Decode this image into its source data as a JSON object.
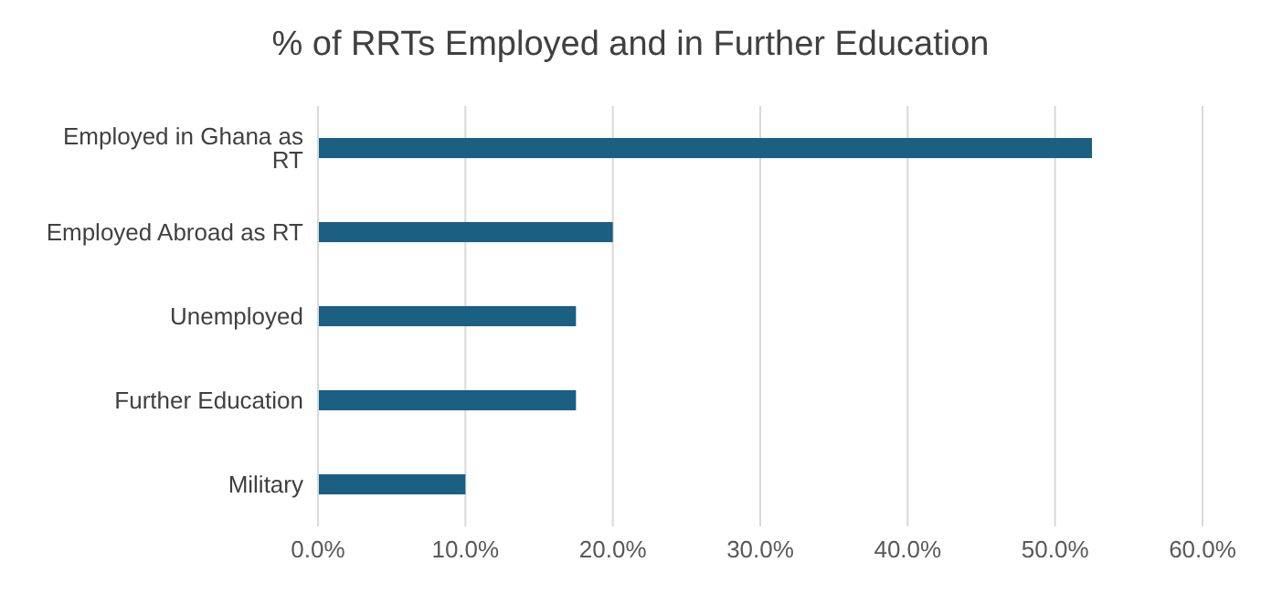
{
  "chart_data": {
    "type": "bar",
    "orientation": "horizontal",
    "title": "% of RRTs Employed and in Further Education",
    "categories": [
      "Employed in Ghana as RT",
      "Employed Abroad as RT",
      "Unemployed",
      "Further Education",
      "Military"
    ],
    "values": [
      52.5,
      20.0,
      17.5,
      17.5,
      10.0
    ],
    "color": "#1b5f82",
    "xlim": [
      0,
      60
    ],
    "xticks": [
      {
        "value": 0,
        "label": "0.0%"
      },
      {
        "value": 10,
        "label": "10.0%"
      },
      {
        "value": 20,
        "label": "20.0%"
      },
      {
        "value": 30,
        "label": "30.0%"
      },
      {
        "value": 40,
        "label": "40.0%"
      },
      {
        "value": 50,
        "label": "50.0%"
      },
      {
        "value": 60,
        "label": "60.0%"
      }
    ],
    "grid": "x"
  }
}
